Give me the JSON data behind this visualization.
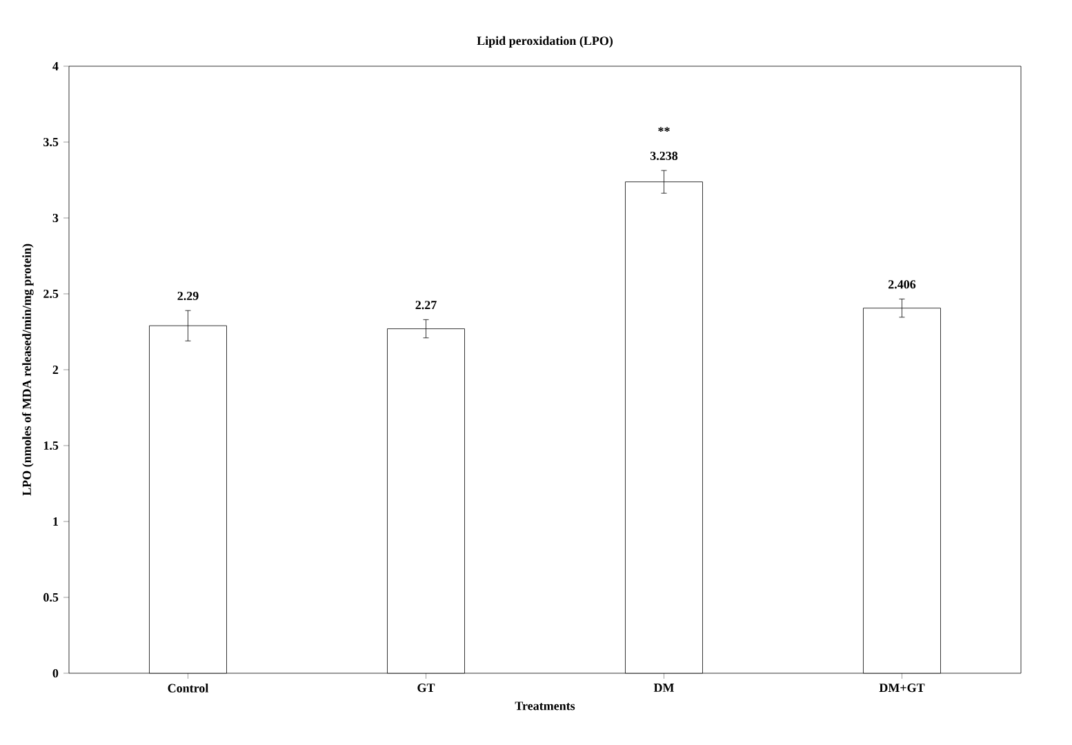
{
  "chart_data": {
    "type": "bar",
    "title": "Lipid peroxidation (LPO)",
    "xlabel": "Treatments",
    "ylabel": "LPO (nmoles of MDA released/min/mg protein)",
    "categories": [
      "Control",
      "GT",
      "DM",
      "DM+GT"
    ],
    "values": [
      2.29,
      2.27,
      3.238,
      2.406
    ],
    "errors": [
      0.1,
      0.06,
      0.075,
      0.06
    ],
    "color": "#ffffff",
    "data_labels": true,
    "annotations": [
      "**"
    ],
    "ylim": [
      0,
      4
    ],
    "yticks": [
      0,
      0.5,
      1,
      1.5,
      2,
      2.5,
      3,
      3.5,
      4
    ],
    "grid": false
  }
}
